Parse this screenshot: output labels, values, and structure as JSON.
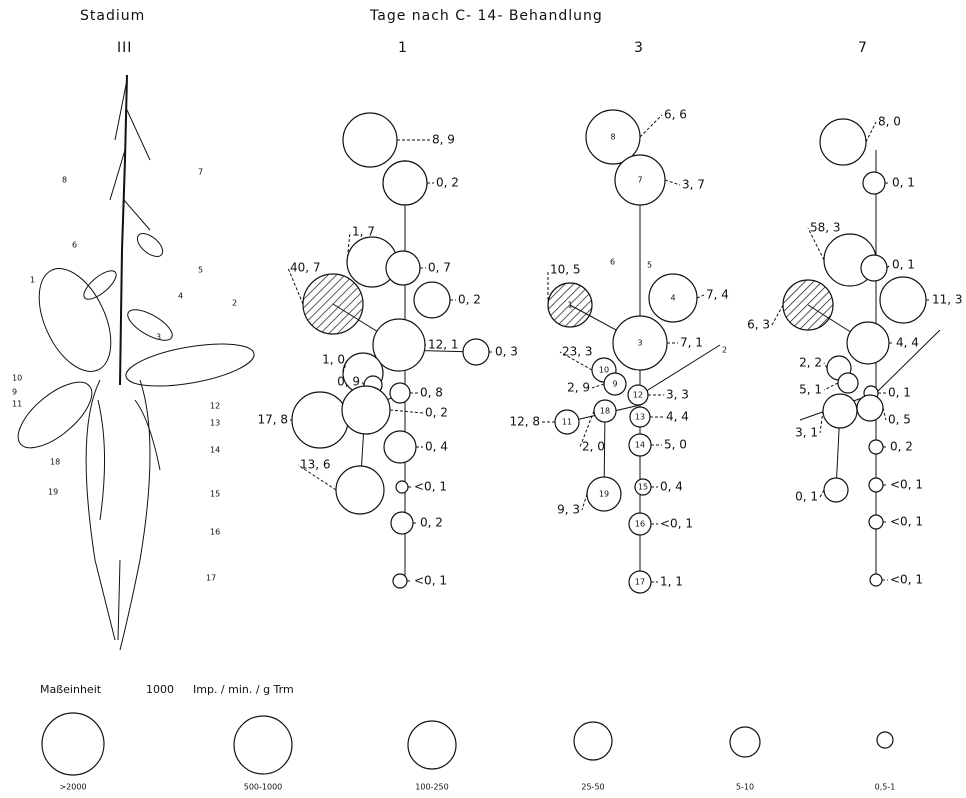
{
  "header": {
    "stadium": "Stadium",
    "title": "Tage nach C- 14- Behandlung"
  },
  "plant": {
    "stage": "III",
    "labels": [
      "1",
      "2",
      "3",
      "4",
      "5",
      "6",
      "7",
      "8",
      "9",
      "10",
      "11",
      "12",
      "13",
      "14",
      "15",
      "16",
      "17",
      "18",
      "19"
    ]
  },
  "columns": [
    {
      "day": "1",
      "nodes": [
        {
          "value": "8, 9"
        },
        {
          "value": "0, 2"
        },
        {
          "value": "1, 7"
        },
        {
          "value": "0, 7"
        },
        {
          "value": "40, 7"
        },
        {
          "value": "0, 2"
        },
        {
          "value": "12, 1"
        },
        {
          "value": "0, 3"
        },
        {
          "value": "1, 0"
        },
        {
          "value": "0, 9"
        },
        {
          "value": "0, 8"
        },
        {
          "value": "17, 8"
        },
        {
          "value": "0, 2"
        },
        {
          "value": "0, 4"
        },
        {
          "value": "13, 6"
        },
        {
          "value": "<0, 1"
        },
        {
          "value": "0, 2"
        },
        {
          "value": "<0, 1"
        }
      ]
    },
    {
      "day": "3",
      "stem_labels": [
        "6",
        "5",
        "2"
      ],
      "nodes": [
        {
          "id": "8",
          "value": "6, 6"
        },
        {
          "id": "7",
          "value": "3, 7"
        },
        {
          "id": "1",
          "value": "10, 5"
        },
        {
          "id": "4",
          "value": "7, 4"
        },
        {
          "id": "3",
          "value": "7, 1"
        },
        {
          "id": "10",
          "value": "23, 3"
        },
        {
          "id": "9",
          "value": "2, 9"
        },
        {
          "id": "12",
          "value": "3, 3"
        },
        {
          "id": "13",
          "value": "4, 4"
        },
        {
          "id": "11",
          "value": "12, 8"
        },
        {
          "id": "18",
          "value": "2, 0"
        },
        {
          "id": "14",
          "value": "5, 0"
        },
        {
          "id": "15",
          "value": "0, 4"
        },
        {
          "id": "19",
          "value": "9, 3"
        },
        {
          "id": "16",
          "value": "<0, 1"
        },
        {
          "id": "17",
          "value": "1, 1"
        }
      ]
    },
    {
      "day": "7",
      "nodes": [
        {
          "value": "8, 0"
        },
        {
          "value": "0, 1"
        },
        {
          "value": "58, 3"
        },
        {
          "value": "0, 1"
        },
        {
          "value": "6, 3"
        },
        {
          "value": "11, 3"
        },
        {
          "value": "4, 4"
        },
        {
          "value": "2, 2"
        },
        {
          "value": "5, 1"
        },
        {
          "value": "0, 1"
        },
        {
          "value": "3, 1"
        },
        {
          "value": "0, 5"
        },
        {
          "value": "0, 2"
        },
        {
          "value": "<0, 1"
        },
        {
          "value": "<0, 1"
        },
        {
          "value": "0, 1"
        },
        {
          "value": "<0, 1"
        }
      ]
    }
  ],
  "legend": {
    "unit_label": "Maßeinheit",
    "unit_value": "1000",
    "unit": "Imp. / min. / g Trm",
    "sizes": [
      ">2000",
      "500-1000",
      "100-250",
      "25-50",
      "5-10",
      "0,5-1"
    ]
  }
}
